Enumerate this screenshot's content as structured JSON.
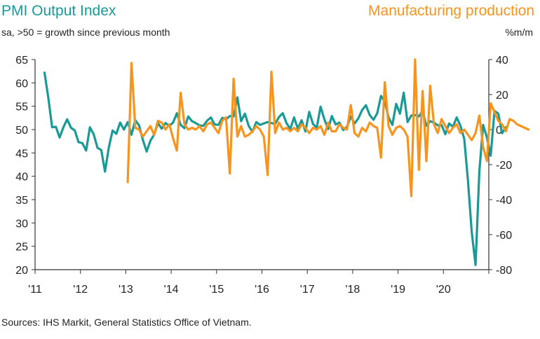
{
  "titles": {
    "left": "PMI Output Index",
    "left_sub": "sa, >50 = growth since previous month",
    "right": "Manufacturing production",
    "right_sub": "%m/m"
  },
  "source": "Sources: IHS Markit, General Statistics Office of Vietnam.",
  "colors": {
    "pmi": "#1a9a96",
    "production": "#f7941d",
    "axis": "#333333"
  },
  "chart_data": {
    "type": "line",
    "x_labels": [
      "'11",
      "'12",
      "'13",
      "'14",
      "'15",
      "'16",
      "'17",
      "'18",
      "'19",
      "'20"
    ],
    "left_axis": {
      "ticks": [
        65,
        60,
        55,
        50,
        45,
        40,
        35,
        30,
        25,
        20
      ],
      "range": [
        20,
        65
      ]
    },
    "right_axis": {
      "ticks": [
        40,
        20,
        0,
        -20,
        -40,
        -60,
        -80
      ],
      "range": [
        -80,
        40
      ]
    },
    "series": [
      {
        "name": "PMI Output Index",
        "axis": "left",
        "start": "2011-03",
        "values": [
          62.2,
          56.8,
          50.5,
          50.6,
          48.3,
          50.5,
          52.2,
          50.4,
          49.8,
          47.3,
          47.1,
          45.5,
          50.5,
          49.0,
          46.1,
          45.6,
          41.0,
          46.1,
          49.8,
          49.1,
          51.5,
          50.0,
          51.6,
          48.9,
          52.0,
          50.9,
          47.8,
          45.3,
          47.6,
          48.9,
          51.4,
          50.2,
          51.4,
          50.8,
          51.5,
          53.5,
          51.0,
          50.3,
          52.8,
          51.8,
          51.4,
          50.9,
          50.8,
          51.9,
          52.6,
          51.1,
          51.0,
          52.5,
          52.2,
          52.9,
          52.8,
          56.9,
          51.8,
          53.4,
          50.8,
          49.5,
          51.6,
          51.0,
          51.3,
          51.6,
          51.4,
          51.2,
          52.7,
          53.5,
          51.4,
          50.1,
          52.6,
          50.2,
          52.0,
          49.6,
          53.8,
          51.2,
          50.4,
          54.9,
          52.2,
          50.1,
          52.9,
          51.1,
          51.5,
          49.9,
          50.6,
          52.8,
          51.3,
          52.4,
          54.2,
          55.2,
          53.1,
          52.1,
          53.5,
          57.2,
          56.0,
          52.6,
          51.0,
          55.5,
          53.4,
          57.9,
          51.6,
          53.0,
          53.1,
          52.8,
          54.0,
          50.8,
          51.8,
          51.5,
          50.9,
          51.0,
          49.0,
          51.3,
          50.6,
          52.6,
          50.8,
          48.0,
          39.0,
          28.0,
          21.0,
          41.0,
          51.0,
          48.3,
          44.4,
          54.0,
          53.4,
          49.2,
          50.5
        ]
      },
      {
        "name": "Manufacturing production",
        "axis": "right",
        "start": "2013-01",
        "values": [
          -30,
          38,
          1,
          0,
          -4,
          -1,
          2,
          -3,
          5,
          4,
          0,
          3,
          -5,
          -12,
          21,
          3,
          0,
          1,
          0,
          2,
          -1,
          3,
          4,
          1,
          -2,
          5,
          7,
          -25,
          29,
          -4,
          2,
          -4,
          -3,
          -1,
          2,
          0,
          -4,
          -26,
          33,
          -2,
          4,
          0,
          1,
          -1,
          1,
          -1,
          3,
          1,
          -2,
          1,
          0,
          2,
          -3,
          4,
          -1,
          -1,
          3,
          1,
          0,
          14,
          -2,
          -4,
          1,
          -1,
          4,
          2,
          1,
          -16,
          27,
          2,
          -3,
          1,
          2,
          0,
          -4,
          -38,
          40,
          -23,
          22,
          -18,
          25,
          3,
          -2,
          6,
          2,
          -2,
          1,
          3,
          -2,
          0,
          -3,
          -6,
          -2,
          8,
          -10,
          -18,
          15,
          10,
          5,
          3,
          -1,
          6,
          5,
          3,
          2,
          1,
          0
        ]
      }
    ]
  }
}
